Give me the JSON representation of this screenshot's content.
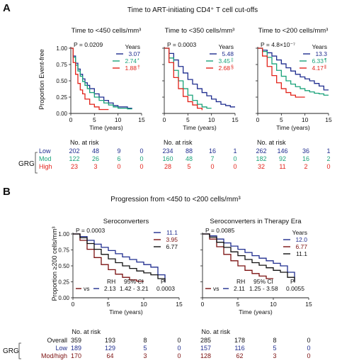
{
  "colors": {
    "blue": "#1f2d8f",
    "green": "#1aa37a",
    "red": "#e2231a",
    "darkred": "#7b1010",
    "black": "#111111"
  },
  "panel_a": {
    "letter": "A",
    "title": "Time to ART-initiating CD4⁺ T cell cut-offs",
    "ylabel": "Proportion Event-free",
    "risk_title": "No. at risk",
    "group_label": "GRG",
    "rows": [
      {
        "name": "Low",
        "color": "#1f2d8f"
      },
      {
        "name": "Mod",
        "color": "#1aa37a"
      },
      {
        "name": "High",
        "color": "#e2231a"
      }
    ]
  },
  "panel_b": {
    "letter": "B",
    "title": "Progression from <450 to <200 cells/mm³",
    "ylabel": "Proportion ≥200 cells/mm³",
    "risk_title": "No. at risk",
    "group_label": "GRG",
    "rows": [
      {
        "name": "Overall",
        "color": "#111111"
      },
      {
        "name": "Low",
        "color": "#1f2d8f"
      },
      {
        "name": "Mod/high",
        "color": "#7b1010"
      }
    ]
  },
  "chart_data": [
    {
      "type": "line",
      "subtype": "kaplan-meier",
      "title": "Time to <450 cells/mm³",
      "pvalue": "P = 0.0209",
      "xlabel": "Time (years)",
      "ylabel": "Proportion Event-free",
      "xlim": [
        0,
        15
      ],
      "ylim": [
        0,
        1.0
      ],
      "xticks": [
        0,
        5,
        10,
        15
      ],
      "yticks": [
        0,
        0.25,
        0.5,
        0.75,
        1.0
      ],
      "legend_title": "Years",
      "series": [
        {
          "name": "Low",
          "legend_value": "3.07",
          "mark": "",
          "color": "#1f2d8f",
          "x": [
            0,
            0.5,
            1,
            1.5,
            2,
            2.5,
            3,
            3.5,
            4,
            5,
            6,
            7,
            8,
            9,
            10,
            12,
            13
          ],
          "y": [
            1.0,
            0.88,
            0.77,
            0.68,
            0.6,
            0.53,
            0.47,
            0.43,
            0.38,
            0.3,
            0.25,
            0.2,
            0.16,
            0.12,
            0.1,
            0.08,
            0.08
          ]
        },
        {
          "name": "Mod",
          "legend_value": "2.74",
          "mark": "*",
          "color": "#1aa37a",
          "x": [
            0,
            0.5,
            1,
            1.5,
            2,
            2.5,
            3,
            3.5,
            4,
            5,
            6,
            7,
            8,
            9,
            10,
            12,
            13
          ],
          "y": [
            1.0,
            0.86,
            0.74,
            0.65,
            0.57,
            0.49,
            0.43,
            0.38,
            0.32,
            0.25,
            0.2,
            0.16,
            0.13,
            0.1,
            0.08,
            0.07,
            0.07
          ]
        },
        {
          "name": "High",
          "legend_value": "1.88",
          "mark": "†",
          "color": "#e2231a",
          "x": [
            0,
            0.5,
            1,
            1.5,
            2,
            2.5,
            3,
            4,
            5,
            6,
            7,
            8
          ],
          "y": [
            1.0,
            0.78,
            0.6,
            0.46,
            0.36,
            0.3,
            0.22,
            0.14,
            0.1,
            0.06,
            0.06,
            0.06
          ]
        }
      ],
      "at_risk": {
        "times": [
          0,
          5,
          10,
          15
        ],
        "Low": [
          202,
          48,
          9,
          0
        ],
        "Mod": [
          122,
          26,
          6,
          0
        ],
        "High": [
          23,
          3,
          0,
          0
        ]
      }
    },
    {
      "type": "line",
      "subtype": "kaplan-meier",
      "title": "Time to <350 cells/mm³",
      "pvalue": "P = 0.0003",
      "xlabel": "Time (years)",
      "ylabel": "",
      "xlim": [
        0,
        15
      ],
      "ylim": [
        0,
        1.0
      ],
      "xticks": [
        0,
        5,
        10,
        15
      ],
      "legend_title": "Years",
      "series": [
        {
          "name": "Low",
          "legend_value": "5.48",
          "mark": "",
          "color": "#1f2d8f",
          "x": [
            0,
            1,
            2,
            3,
            4,
            5,
            6,
            7,
            8,
            9,
            10,
            11,
            12,
            13,
            14,
            15
          ],
          "y": [
            1.0,
            0.92,
            0.82,
            0.72,
            0.62,
            0.52,
            0.45,
            0.38,
            0.32,
            0.27,
            0.22,
            0.18,
            0.14,
            0.12,
            0.1,
            0.1
          ]
        },
        {
          "name": "Mod",
          "legend_value": "3.45",
          "mark": "‡",
          "color": "#1aa37a",
          "x": [
            0,
            1,
            2,
            3,
            4,
            5,
            6,
            7,
            8,
            9,
            10
          ],
          "y": [
            1.0,
            0.85,
            0.66,
            0.5,
            0.38,
            0.28,
            0.2,
            0.14,
            0.1,
            0.08,
            0.08
          ]
        },
        {
          "name": "High",
          "legend_value": "2.68",
          "mark": "§",
          "color": "#e2231a",
          "x": [
            0,
            1,
            2,
            3,
            4,
            5,
            6,
            7,
            8
          ],
          "y": [
            1.0,
            0.78,
            0.55,
            0.38,
            0.26,
            0.18,
            0.13,
            0.08,
            0.05
          ]
        }
      ],
      "at_risk": {
        "times": [
          0,
          5,
          10,
          15
        ],
        "Low": [
          234,
          88,
          16,
          1
        ],
        "Mod": [
          160,
          48,
          7,
          0
        ],
        "High": [
          28,
          5,
          0,
          0
        ]
      }
    },
    {
      "type": "line",
      "subtype": "kaplan-meier",
      "title": "Time to <200 cells/mm³",
      "pvalue": "P = 4.8×10⁻⁷",
      "xlabel": "Time (years)",
      "ylabel": "",
      "xlim": [
        0,
        15
      ],
      "ylim": [
        0,
        1.0
      ],
      "xticks": [
        0,
        5,
        10,
        15
      ],
      "legend_title": "Years",
      "series": [
        {
          "name": "Low",
          "legend_value": "13.3",
          "mark": "",
          "color": "#1f2d8f",
          "x": [
            0,
            1,
            2,
            3,
            4,
            5,
            6,
            7,
            8,
            9,
            10,
            11,
            12,
            13,
            14,
            15
          ],
          "y": [
            1.0,
            0.97,
            0.93,
            0.88,
            0.82,
            0.76,
            0.7,
            0.65,
            0.6,
            0.56,
            0.53,
            0.5,
            0.46,
            0.42,
            0.36,
            0.36
          ]
        },
        {
          "name": "Mod",
          "legend_value": "6.33",
          "mark": "¶",
          "color": "#1aa37a",
          "x": [
            0,
            1,
            2,
            3,
            4,
            5,
            6,
            7,
            8,
            9,
            10,
            11,
            12,
            13,
            14,
            15
          ],
          "y": [
            1.0,
            0.95,
            0.86,
            0.76,
            0.66,
            0.57,
            0.5,
            0.45,
            0.41,
            0.38,
            0.35,
            0.33,
            0.31,
            0.3,
            0.28,
            0.28
          ]
        },
        {
          "name": "High",
          "legend_value": "4.17",
          "mark": "‖",
          "color": "#e2231a",
          "x": [
            0,
            1,
            2,
            3,
            4,
            5,
            6,
            7,
            8,
            9,
            10
          ],
          "y": [
            1.0,
            0.88,
            0.72,
            0.58,
            0.47,
            0.38,
            0.32,
            0.28,
            0.25,
            0.25,
            0.25
          ]
        }
      ],
      "at_risk": {
        "times": [
          0,
          5,
          10,
          15
        ],
        "Low": [
          262,
          146,
          36,
          1
        ],
        "Mod": [
          182,
          92,
          16,
          2
        ],
        "High": [
          32,
          11,
          2,
          0
        ]
      }
    },
    {
      "type": "line",
      "subtype": "kaplan-meier",
      "title": "Seroconverters",
      "pvalue": "P = 0.0003",
      "xlabel": "Time (years)",
      "ylabel": "Proportion ≥200 cells/mm³",
      "xlim": [
        0,
        15
      ],
      "ylim": [
        0,
        1.0
      ],
      "xticks": [
        0,
        5,
        10,
        15
      ],
      "yticks": [
        0,
        0.25,
        0.5,
        0.75,
        1.0
      ],
      "legend_title": "",
      "series": [
        {
          "name": "Low",
          "legend_value": "11.1",
          "color": "#1f2d8f",
          "x": [
            0,
            1,
            2,
            3,
            4,
            5,
            6,
            7,
            8,
            9,
            10,
            11,
            12,
            13
          ],
          "y": [
            1.0,
            0.96,
            0.9,
            0.84,
            0.79,
            0.74,
            0.69,
            0.64,
            0.6,
            0.56,
            0.52,
            0.48,
            0.36,
            0.24
          ]
        },
        {
          "name": "Mod/high",
          "legend_value": "3.95",
          "color": "#7b1010",
          "x": [
            0,
            1,
            2,
            3,
            4,
            5,
            6,
            7,
            8,
            9,
            10
          ],
          "y": [
            1.0,
            0.9,
            0.76,
            0.63,
            0.52,
            0.44,
            0.37,
            0.32,
            0.28,
            0.26,
            0.26
          ]
        },
        {
          "name": "Overall",
          "legend_value": "6.77",
          "color": "#111111",
          "x": [
            0,
            1,
            2,
            3,
            4,
            5,
            6,
            7,
            8,
            9,
            10,
            11,
            12,
            13
          ],
          "y": [
            1.0,
            0.94,
            0.85,
            0.76,
            0.68,
            0.61,
            0.55,
            0.5,
            0.46,
            0.42,
            0.39,
            0.36,
            0.3,
            0.24
          ]
        }
      ],
      "stats": {
        "vs": "vs",
        "rh_label": "RH",
        "ci_label": "95% CI",
        "p_label": "P",
        "rh": "2.13",
        "ci": "1.42 - 3.21",
        "p": "0.0003"
      },
      "at_risk": {
        "times": [
          0,
          5,
          10,
          15
        ],
        "Overall": [
          359,
          193,
          8,
          0
        ],
        "Low": [
          189,
          129,
          5,
          0
        ],
        "Mod/high": [
          170,
          64,
          3,
          0
        ]
      }
    },
    {
      "type": "line",
      "subtype": "kaplan-meier",
      "title": "Seroconverters in Therapy Era",
      "pvalue": "P = 0.0085",
      "xlabel": "Time (years)",
      "ylabel": "",
      "xlim": [
        0,
        15
      ],
      "ylim": [
        0,
        1.0
      ],
      "xticks": [
        0,
        5,
        10,
        15
      ],
      "legend_title": "Years",
      "series": [
        {
          "name": "Low",
          "legend_value": "12.0",
          "color": "#1f2d8f",
          "x": [
            0,
            1,
            2,
            3,
            4,
            5,
            6,
            7,
            8,
            9,
            10,
            11,
            12,
            13
          ],
          "y": [
            1.0,
            0.97,
            0.92,
            0.86,
            0.81,
            0.76,
            0.71,
            0.66,
            0.62,
            0.58,
            0.54,
            0.5,
            0.4,
            0.26
          ]
        },
        {
          "name": "Mod/high",
          "legend_value": "6.77",
          "color": "#7b1010",
          "x": [
            0,
            1,
            2,
            3,
            4,
            5,
            6,
            7,
            8,
            9,
            10
          ],
          "y": [
            1.0,
            0.92,
            0.8,
            0.68,
            0.58,
            0.5,
            0.43,
            0.38,
            0.34,
            0.3,
            0.3
          ]
        },
        {
          "name": "Overall",
          "legend_value": "11.1",
          "color": "#111111",
          "x": [
            0,
            1,
            2,
            3,
            4,
            5,
            6,
            7,
            8,
            9,
            10,
            11,
            12,
            13
          ],
          "y": [
            1.0,
            0.95,
            0.87,
            0.79,
            0.72,
            0.66,
            0.6,
            0.55,
            0.51,
            0.47,
            0.43,
            0.4,
            0.32,
            0.24
          ]
        }
      ],
      "stats": {
        "vs": "vs",
        "rh_label": "RH",
        "ci_label": "95% CI",
        "p_label": "P",
        "rh": "2.11",
        "ci": "1.25 - 3.58",
        "p": "0.0055"
      },
      "at_risk": {
        "times": [
          0,
          5,
          10,
          15
        ],
        "Overall": [
          285,
          178,
          8,
          0
        ],
        "Low": [
          157,
          116,
          5,
          0
        ],
        "Mod/high": [
          128,
          62,
          3,
          0
        ]
      }
    }
  ]
}
